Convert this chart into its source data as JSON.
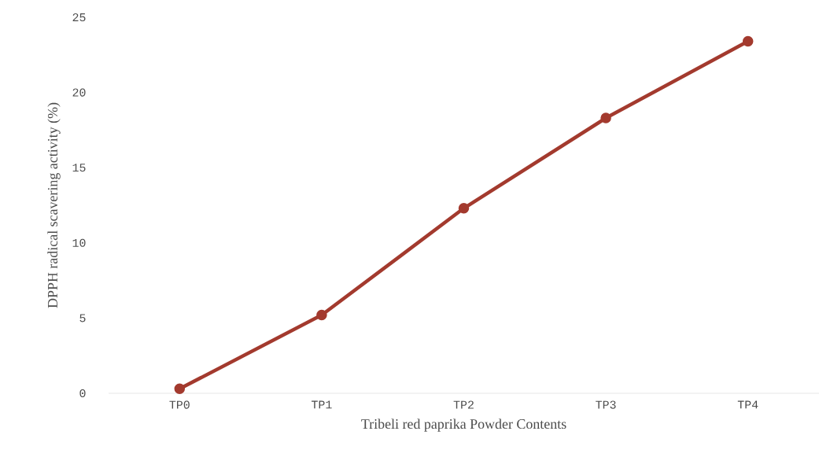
{
  "chart_data": {
    "type": "line",
    "xlabel": "Tribeli red paprika Powder Contents",
    "ylabel": "DPPH radical scavering activity (%)",
    "categories": [
      "TP0",
      "TP1",
      "TP2",
      "TP3",
      "TP4"
    ],
    "series": [
      {
        "color": "#a33a2e",
        "values": [
          0.3,
          5.2,
          12.3,
          18.3,
          23.4
        ]
      }
    ],
    "ylim": [
      0,
      25
    ],
    "yticks": [
      0,
      5,
      10,
      15,
      20,
      25
    ],
    "grid": false,
    "marker": "circle",
    "line_style": "solid"
  }
}
